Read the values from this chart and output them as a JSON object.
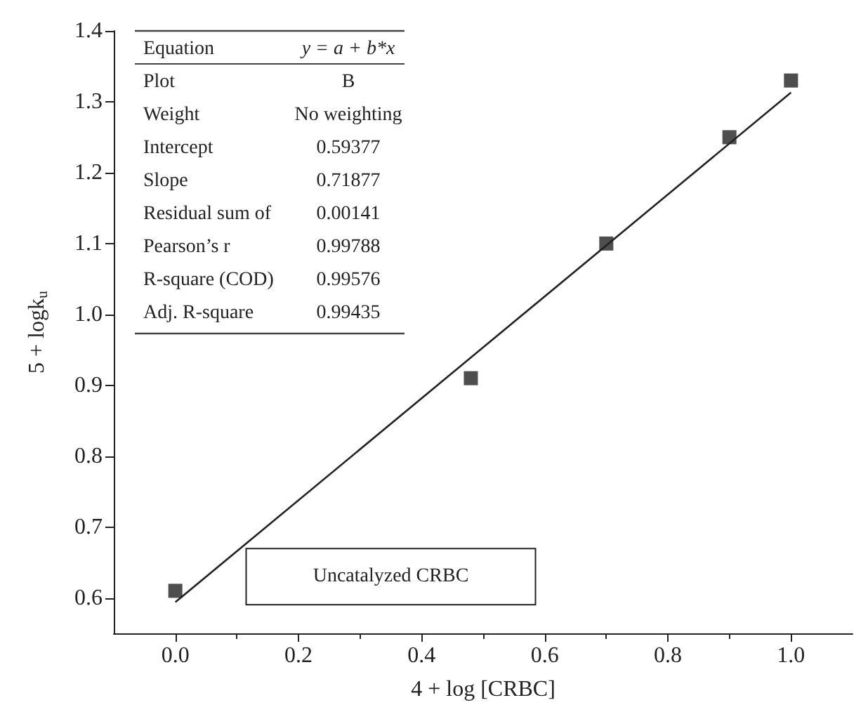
{
  "chart_data": {
    "type": "scatter",
    "xlabel": "4 + log [CRBC]",
    "ylabel": "5 + logk$_{u}$",
    "xlim": [
      -0.1,
      1.1
    ],
    "xticks": [
      {
        "value": 0,
        "label": "0.0"
      },
      0.2,
      0.4,
      0.6,
      0.8,
      {
        "value": 1,
        "label": "1.0"
      }
    ],
    "ylim": [
      0.55,
      1.4
    ],
    "yticks": [
      0.6,
      0.7,
      0.8,
      0.9,
      {
        "value": 1,
        "label": "1.0"
      },
      1.1,
      1.2,
      1.3,
      1.4
    ],
    "grid": false,
    "series": [
      {
        "marker": "square",
        "color": "#222222",
        "x": [
          0,
          0.48,
          0.7,
          0.9,
          1.0
        ],
        "values": [
          0.61,
          0.91,
          1.1,
          1.25,
          1.33
        ]
      },
      {
        "type": "line",
        "marker": "none",
        "color": "#222222",
        "line_style": "solid",
        "x": [
          0,
          1
        ],
        "values": [
          0.594,
          1.313
        ]
      }
    ],
    "annotations": [
      "Equation",
      "y = a + b*x",
      "Plot",
      "B",
      "Weight",
      "No weighting",
      "Intercept",
      "0.59377",
      "Slope",
      "0.71877",
      "Residual sum of",
      "0.00141",
      "Pearson’s r",
      "0.99788",
      "R-square (COD)",
      "0.99576",
      "Adj. R-square",
      "0.99435",
      "Uncatalyzed CRBC"
    ]
  }
}
